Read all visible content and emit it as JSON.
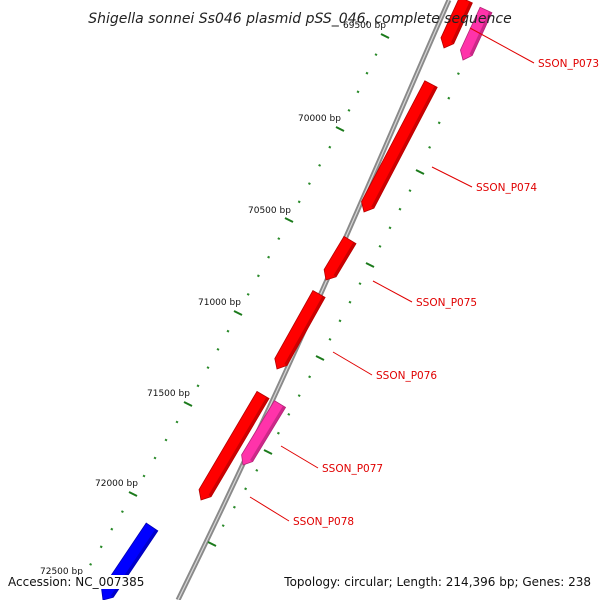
{
  "title": "Shigella sonnei Ss046 plasmid pSS_046, complete sequence",
  "footer": {
    "accession": "Accession: NC_007385",
    "summary": "Topology: circular; Length: 214,396 bp; Genes: 238"
  },
  "colors": {
    "backbone": "#8a8a8a",
    "tick_major": "#1b7a1b",
    "tick_minor": "#2a8a2a",
    "label_line": "#e00000",
    "gene_red": "#ff0000",
    "gene_pink": "#ff33aa",
    "gene_blue": "#0000ff"
  },
  "ticks": [
    {
      "label": "69500 bp"
    },
    {
      "label": "70000 bp"
    },
    {
      "label": "70500 bp"
    },
    {
      "label": "71000 bp"
    },
    {
      "label": "71500 bp"
    },
    {
      "label": "72000 bp"
    },
    {
      "label": "72500 bp"
    }
  ],
  "genes": [
    {
      "label": "SSON_P073",
      "color": "gene_red"
    },
    {
      "label": "",
      "color": "gene_pink"
    },
    {
      "label": "SSON_P074",
      "color": "gene_red"
    },
    {
      "label": "SSON_P075",
      "color": "gene_red"
    },
    {
      "label": "SSON_P076",
      "color": "gene_red"
    },
    {
      "label": "SSON_P077",
      "color": "gene_pink"
    },
    {
      "label": "SSON_P078",
      "color": "gene_red"
    },
    {
      "label": "",
      "color": "gene_blue"
    }
  ]
}
